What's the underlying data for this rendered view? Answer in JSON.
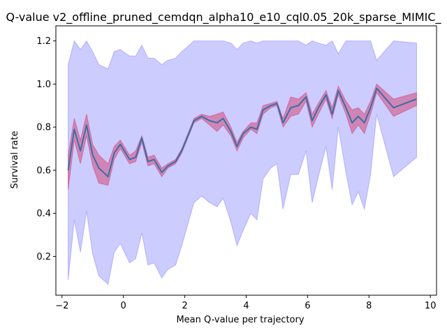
{
  "chart_data": {
    "type": "line",
    "title": "Q-value v2_offline_pruned_cemdqn_alpha10_e10_cql0.05_20k_sparse_MIMIC_",
    "xlabel": "Mean Q-value per trajectory",
    "ylabel": "Survival rate",
    "xlim": [
      -2.2,
      10.2
    ],
    "ylim": [
      0.02,
      1.27
    ],
    "xticks": [
      -2,
      0,
      2,
      4,
      6,
      8,
      10
    ],
    "yticks": [
      0.2,
      0.4,
      0.6,
      0.8,
      1.0,
      1.2
    ],
    "colors": {
      "line": "#3a6ea5",
      "inner_band": "#d24a7a",
      "outer_band": "#8080ff",
      "axis": "#000000"
    },
    "x": [
      -1.8,
      -1.6,
      -1.4,
      -1.2,
      -1.0,
      -0.8,
      -0.5,
      -0.3,
      -0.1,
      0.2,
      0.4,
      0.6,
      0.8,
      1.0,
      1.25,
      1.45,
      1.7,
      1.9,
      2.3,
      2.55,
      2.8,
      3.05,
      3.25,
      3.5,
      3.7,
      3.9,
      4.15,
      4.35,
      4.55,
      4.8,
      5.0,
      5.2,
      5.45,
      5.7,
      5.95,
      6.15,
      6.35,
      6.6,
      6.8,
      7.0,
      7.25,
      7.45,
      7.65,
      7.85,
      8.05,
      8.25,
      8.8,
      9.55
    ],
    "series": [
      {
        "name": "mean",
        "values": [
          0.6,
          0.79,
          0.69,
          0.81,
          0.67,
          0.61,
          0.57,
          0.68,
          0.72,
          0.65,
          0.66,
          0.75,
          0.64,
          0.65,
          0.59,
          0.62,
          0.64,
          0.69,
          0.83,
          0.85,
          0.83,
          0.82,
          0.84,
          0.78,
          0.71,
          0.77,
          0.8,
          0.79,
          0.88,
          0.9,
          0.91,
          0.82,
          0.89,
          0.9,
          0.94,
          0.83,
          0.89,
          0.95,
          0.86,
          0.97,
          0.89,
          0.82,
          0.85,
          0.82,
          0.89,
          0.98,
          0.89,
          0.93
        ]
      },
      {
        "name": "inner_upper",
        "values": [
          0.67,
          0.84,
          0.74,
          0.86,
          0.72,
          0.67,
          0.63,
          0.71,
          0.74,
          0.67,
          0.69,
          0.76,
          0.66,
          0.67,
          0.61,
          0.63,
          0.65,
          0.7,
          0.84,
          0.86,
          0.85,
          0.86,
          0.87,
          0.8,
          0.73,
          0.78,
          0.82,
          0.82,
          0.9,
          0.91,
          0.92,
          0.84,
          0.94,
          0.93,
          0.96,
          0.86,
          0.91,
          0.97,
          0.89,
          0.99,
          0.92,
          0.88,
          0.89,
          0.86,
          0.92,
          1.0,
          0.93,
          0.96
        ]
      },
      {
        "name": "inner_lower",
        "values": [
          0.51,
          0.74,
          0.63,
          0.76,
          0.62,
          0.54,
          0.53,
          0.65,
          0.7,
          0.63,
          0.64,
          0.73,
          0.62,
          0.63,
          0.57,
          0.61,
          0.63,
          0.68,
          0.82,
          0.84,
          0.81,
          0.78,
          0.81,
          0.76,
          0.69,
          0.75,
          0.79,
          0.77,
          0.86,
          0.89,
          0.9,
          0.8,
          0.85,
          0.86,
          0.92,
          0.8,
          0.86,
          0.93,
          0.84,
          0.95,
          0.86,
          0.77,
          0.81,
          0.77,
          0.86,
          0.96,
          0.85,
          0.9
        ]
      },
      {
        "name": "outer_upper",
        "values": [
          1.09,
          1.2,
          1.16,
          1.2,
          1.15,
          1.09,
          1.07,
          1.15,
          1.16,
          1.13,
          1.13,
          1.18,
          1.12,
          1.12,
          1.09,
          1.11,
          1.12,
          1.15,
          1.2,
          1.2,
          1.2,
          1.2,
          1.2,
          1.19,
          1.16,
          1.19,
          1.2,
          1.19,
          1.2,
          1.2,
          1.2,
          1.2,
          1.2,
          1.2,
          1.18,
          1.2,
          1.19,
          1.18,
          1.2,
          1.14,
          1.2,
          1.2,
          1.2,
          1.2,
          1.2,
          1.11,
          1.2,
          1.19
        ]
      },
      {
        "name": "outer_lower",
        "values": [
          0.09,
          0.37,
          0.22,
          0.41,
          0.21,
          0.11,
          0.07,
          0.22,
          0.26,
          0.17,
          0.19,
          0.31,
          0.16,
          0.17,
          0.1,
          0.14,
          0.16,
          0.25,
          0.45,
          0.48,
          0.45,
          0.43,
          0.47,
          0.36,
          0.25,
          0.32,
          0.4,
          0.37,
          0.56,
          0.61,
          0.63,
          0.42,
          0.58,
          0.58,
          0.69,
          0.45,
          0.57,
          0.71,
          0.51,
          0.8,
          0.59,
          0.44,
          0.5,
          0.42,
          0.58,
          0.86,
          0.57,
          0.66
        ]
      }
    ]
  }
}
